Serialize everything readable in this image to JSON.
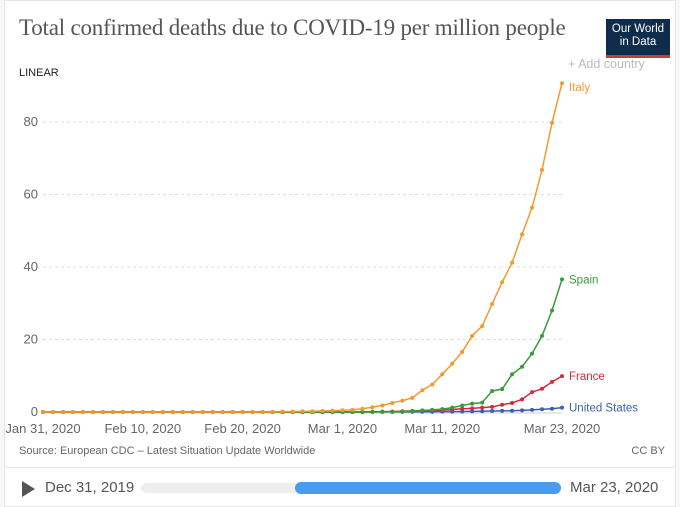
{
  "header": {
    "title": "Total confirmed deaths due to COVID-19 per million people",
    "logo": "Our World in Data",
    "scale_toggle": "LINEAR",
    "add_country": "+ Add country"
  },
  "footer": {
    "source": "Source: European CDC – Latest Situation Update Worldwide",
    "license": "CC BY"
  },
  "timeline": {
    "start_label": "Dec 31, 2019",
    "end_label": "Mar 23, 2020",
    "play_icon": "play-icon",
    "accent": "#4a9cf0"
  },
  "chart_data": {
    "type": "line",
    "x_start": "2020-01-31",
    "x_end": "2020-03-23",
    "x_step": "1 day",
    "xticks": [
      "Jan 31, 2020",
      "Feb 10, 2020",
      "Feb 20, 2020",
      "Mar 1, 2020",
      "Mar 11, 2020",
      "Mar 23, 2020"
    ],
    "xtick_offsets_days": [
      0,
      10,
      20,
      30,
      40,
      52
    ],
    "yticks": [
      0,
      20,
      40,
      60,
      80
    ],
    "ylim": [
      0,
      90.7
    ],
    "grid": "horizontal dashed",
    "series": [
      {
        "name": "Italy",
        "color": "#f29a2e",
        "values": [
          0,
          0,
          0,
          0,
          0,
          0,
          0,
          0,
          0,
          0,
          0,
          0,
          0,
          0,
          0,
          0,
          0,
          0,
          0,
          0,
          0,
          0,
          0,
          0.03,
          0.1,
          0.12,
          0.2,
          0.2,
          0.3,
          0.35,
          0.5,
          0.6,
          0.9,
          1.3,
          1.8,
          2.5,
          3.1,
          3.9,
          6.0,
          7.6,
          10.4,
          13.3,
          16.6,
          21.0,
          23.7,
          29.8,
          35.8,
          41.2,
          49.0,
          56.4,
          66.8,
          79.8,
          90.7
        ]
      },
      {
        "name": "Spain",
        "color": "#3a9a3a",
        "values": [
          0,
          0,
          0,
          0,
          0,
          0,
          0,
          0,
          0,
          0,
          0,
          0,
          0,
          0,
          0,
          0,
          0,
          0,
          0,
          0,
          0,
          0,
          0,
          0,
          0,
          0,
          0,
          0,
          0,
          0,
          0,
          0,
          0.02,
          0.02,
          0.04,
          0.06,
          0.1,
          0.2,
          0.4,
          0.6,
          0.8,
          1.2,
          1.8,
          2.3,
          2.6,
          5.8,
          6.3,
          10.4,
          12.5,
          16.1,
          21.0,
          28.0,
          36.6
        ]
      },
      {
        "name": "France",
        "color": "#d42a3c",
        "values": [
          0,
          0,
          0,
          0,
          0,
          0,
          0,
          0,
          0,
          0,
          0,
          0,
          0,
          0,
          0,
          0.015,
          0.015,
          0.015,
          0.015,
          0.015,
          0.015,
          0.015,
          0.015,
          0.015,
          0.015,
          0.015,
          0.015,
          0.015,
          0.015,
          0.015,
          0.03,
          0.05,
          0.05,
          0.06,
          0.1,
          0.14,
          0.2,
          0.3,
          0.4,
          0.5,
          0.5,
          0.7,
          0.9,
          1.0,
          1.2,
          1.4,
          2.0,
          2.5,
          3.5,
          5.5,
          6.4,
          8.3,
          9.9
        ]
      },
      {
        "name": "United States",
        "color": "#3a5fb0",
        "values": [
          0,
          0,
          0,
          0,
          0,
          0,
          0,
          0,
          0,
          0,
          0,
          0,
          0,
          0,
          0,
          0,
          0,
          0,
          0,
          0,
          0,
          0,
          0,
          0,
          0,
          0,
          0,
          0,
          0,
          0,
          0,
          0,
          0.01,
          0.03,
          0.03,
          0.04,
          0.05,
          0.06,
          0.07,
          0.08,
          0.09,
          0.12,
          0.15,
          0.17,
          0.2,
          0.26,
          0.3,
          0.33,
          0.45,
          0.6,
          0.75,
          0.9,
          1.2
        ]
      }
    ]
  }
}
